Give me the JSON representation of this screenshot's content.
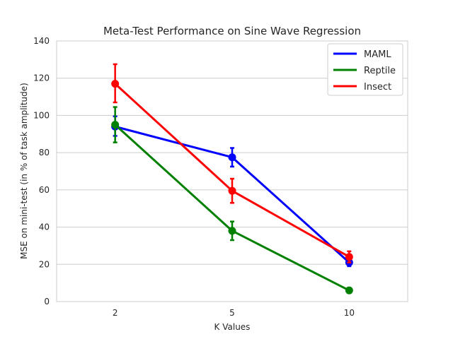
{
  "chart_data": {
    "type": "line",
    "title": "Meta-Test Performance on Sine Wave Regression",
    "xlabel": "K Values",
    "ylabel": "MSE on mini-test (in % of task amplitude)",
    "categories": [
      "2",
      "5",
      "10"
    ],
    "ylim": [
      0,
      140
    ],
    "yticks": [
      0,
      20,
      40,
      60,
      80,
      100,
      120,
      140
    ],
    "grid": "horizontal",
    "legend_position": "top-right",
    "series": [
      {
        "name": "MAML",
        "color": "#0000ff",
        "values": [
          94,
          77.5,
          21
        ],
        "err_low": [
          89,
          72.5,
          19
        ],
        "err_high": [
          99.5,
          82.5,
          23
        ]
      },
      {
        "name": "Reptile",
        "color": "#008000",
        "values": [
          95,
          38,
          6
        ],
        "err_low": [
          85.5,
          33,
          5.5
        ],
        "err_high": [
          104.5,
          43,
          6.5
        ]
      },
      {
        "name": "Insect",
        "color": "#ff0000",
        "values": [
          117,
          59.5,
          24
        ],
        "err_low": [
          107,
          53,
          21
        ],
        "err_high": [
          127.5,
          66,
          27
        ]
      }
    ]
  }
}
